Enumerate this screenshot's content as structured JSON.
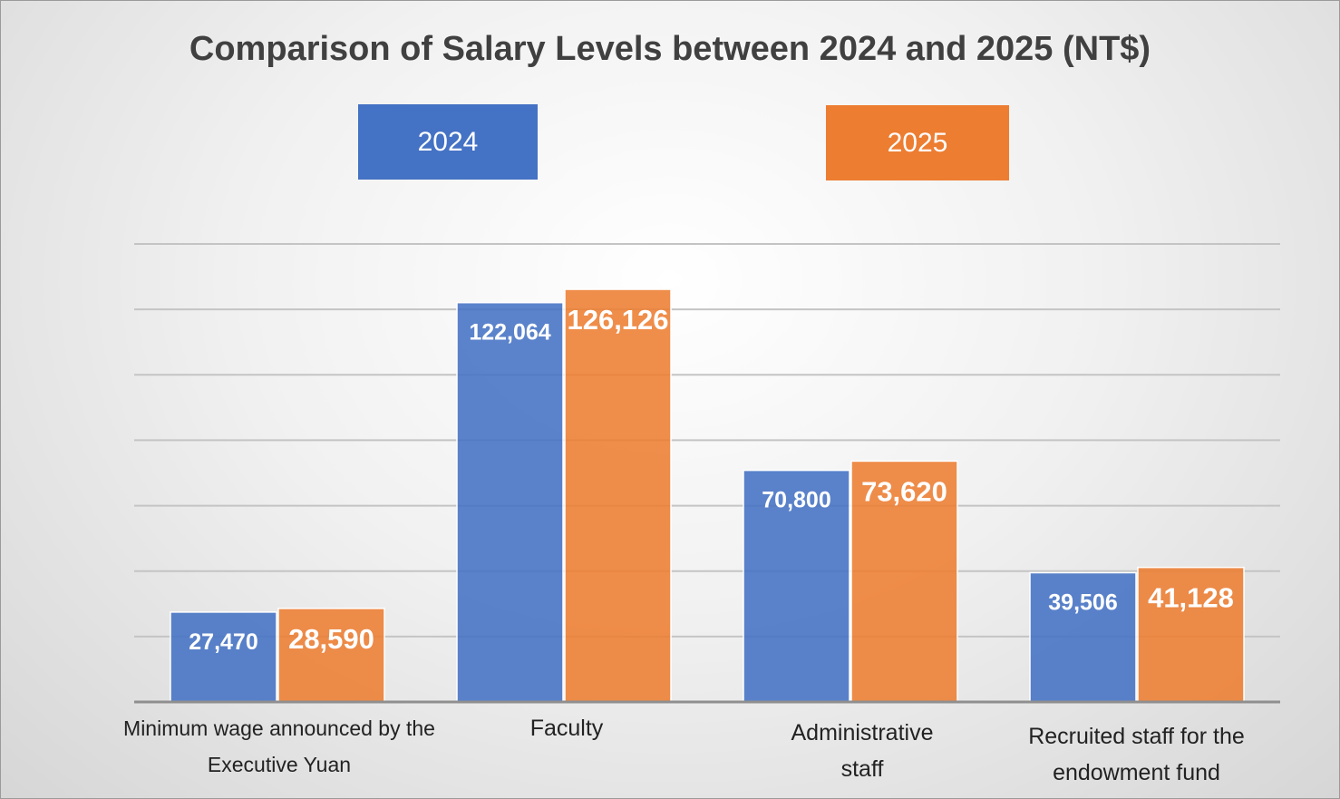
{
  "chart_data": {
    "type": "bar",
    "title": "Comparison of Salary Levels between 2024 and 2025 (NT$)",
    "xlabel": "",
    "ylabel": "",
    "categories": [
      "Minimum wage announced by the Executive Yuan",
      "Faculty",
      "Administrative staff",
      "Recruited staff for the endowment fund"
    ],
    "series": [
      {
        "name": "2024",
        "color": "#4472C4",
        "values": [
          27470,
          122064,
          70800,
          39506
        ],
        "labels": [
          "27,470",
          "122,064",
          "70,800",
          "39,506"
        ]
      },
      {
        "name": "2025",
        "color": "#ED7D31",
        "values": [
          28590,
          126126,
          73620,
          41128
        ],
        "labels": [
          "28,590",
          "126,126",
          "73,620",
          "41,128"
        ]
      }
    ],
    "ylim": [
      0,
      140000
    ],
    "grid": true,
    "legend_position": "top"
  }
}
